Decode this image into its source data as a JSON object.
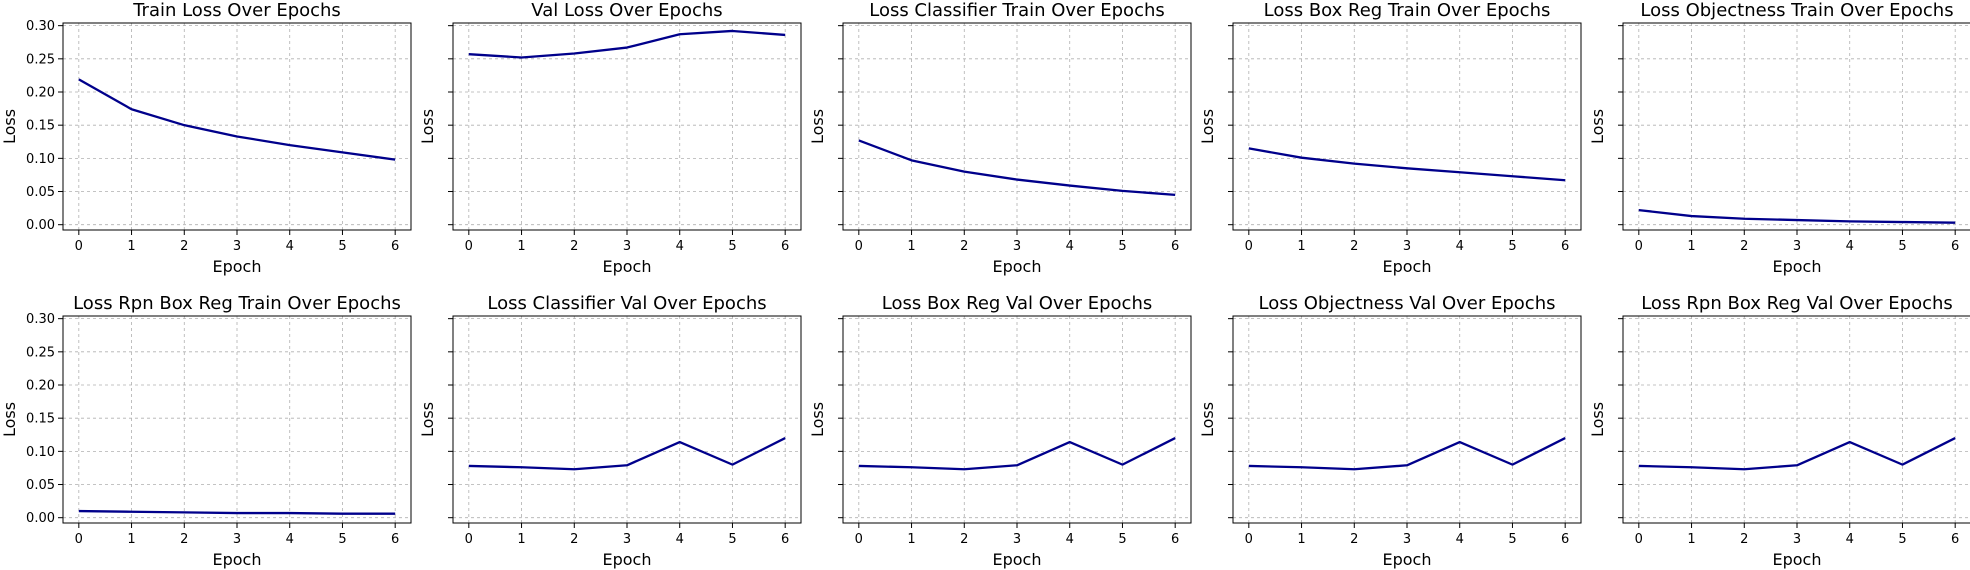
{
  "line_color": "#00008b",
  "grid_color": "#b0b0b0",
  "chart_data": [
    {
      "type": "line",
      "title": "Train Loss Over Epochs",
      "xlabel": "Epoch",
      "ylabel": "Loss",
      "x": [
        0,
        1,
        2,
        3,
        4,
        5,
        6
      ],
      "values": [
        0.219,
        0.174,
        0.15,
        0.133,
        0.12,
        0.109,
        0.098
      ],
      "xlim": [
        -0.3,
        6.3
      ],
      "ylim": [
        -0.008,
        0.304
      ],
      "yticks": [
        0,
        0.05,
        0.1,
        0.15,
        0.2,
        0.25,
        0.3
      ],
      "yticklabels": [
        "0.00",
        "0.05",
        "0.10",
        "0.15",
        "0.20",
        "0.25",
        "0.30"
      ],
      "grid": true
    },
    {
      "type": "line",
      "title": "Val Loss Over Epochs",
      "xlabel": "Epoch",
      "ylabel": "Loss",
      "x": [
        0,
        1,
        2,
        3,
        4,
        5,
        6
      ],
      "values": [
        0.257,
        0.252,
        0.258,
        0.267,
        0.287,
        0.292,
        0.286
      ],
      "xlim": [
        -0.3,
        6.3
      ],
      "ylim": [
        -0.008,
        0.304
      ],
      "yticks": [
        0,
        0.05,
        0.1,
        0.15,
        0.2,
        0.25,
        0.3
      ],
      "grid": true
    },
    {
      "type": "line",
      "title": "Loss Classifier Train Over Epochs",
      "xlabel": "Epoch",
      "ylabel": "Loss",
      "x": [
        0,
        1,
        2,
        3,
        4,
        5,
        6
      ],
      "values": [
        0.127,
        0.097,
        0.08,
        0.068,
        0.059,
        0.051,
        0.045
      ],
      "xlim": [
        -0.3,
        6.3
      ],
      "ylim": [
        -0.008,
        0.304
      ],
      "yticks": [
        0,
        0.05,
        0.1,
        0.15,
        0.2,
        0.25,
        0.3
      ],
      "grid": true
    },
    {
      "type": "line",
      "title": "Loss Box Reg Train Over Epochs",
      "xlabel": "Epoch",
      "ylabel": "Loss",
      "x": [
        0,
        1,
        2,
        3,
        4,
        5,
        6
      ],
      "values": [
        0.115,
        0.101,
        0.092,
        0.085,
        0.079,
        0.073,
        0.067
      ],
      "xlim": [
        -0.3,
        6.3
      ],
      "ylim": [
        -0.008,
        0.304
      ],
      "yticks": [
        0,
        0.05,
        0.1,
        0.15,
        0.2,
        0.25,
        0.3
      ],
      "grid": true
    },
    {
      "type": "line",
      "title": "Loss Objectness Train Over Epochs",
      "xlabel": "Epoch",
      "ylabel": "Loss",
      "x": [
        0,
        1,
        2,
        3,
        4,
        5,
        6
      ],
      "values": [
        0.022,
        0.013,
        0.009,
        0.007,
        0.005,
        0.004,
        0.003
      ],
      "xlim": [
        -0.3,
        6.3
      ],
      "ylim": [
        -0.008,
        0.304
      ],
      "yticks": [
        0,
        0.05,
        0.1,
        0.15,
        0.2,
        0.25,
        0.3
      ],
      "grid": true
    },
    {
      "type": "line",
      "title": "Loss Rpn Box Reg Train Over Epochs",
      "xlabel": "Epoch",
      "ylabel": "Loss",
      "x": [
        0,
        1,
        2,
        3,
        4,
        5,
        6
      ],
      "values": [
        0.01,
        0.009,
        0.008,
        0.007,
        0.007,
        0.006,
        0.006
      ],
      "xlim": [
        -0.3,
        6.3
      ],
      "ylim": [
        -0.008,
        0.304
      ],
      "yticks": [
        0,
        0.05,
        0.1,
        0.15,
        0.2,
        0.25,
        0.3
      ],
      "yticklabels": [
        "0.00",
        "0.05",
        "0.10",
        "0.15",
        "0.20",
        "0.25",
        "0.30"
      ],
      "grid": true
    },
    {
      "type": "line",
      "title": "Loss Classifier Val Over Epochs",
      "xlabel": "Epoch",
      "ylabel": "Loss",
      "x": [
        0,
        1,
        2,
        3,
        4,
        5,
        6
      ],
      "values": [
        0.078,
        0.076,
        0.073,
        0.079,
        0.114,
        0.08,
        0.12
      ],
      "xlim": [
        -0.3,
        6.3
      ],
      "ylim": [
        -0.008,
        0.304
      ],
      "yticks": [
        0,
        0.05,
        0.1,
        0.15,
        0.2,
        0.25,
        0.3
      ],
      "grid": true
    },
    {
      "type": "line",
      "title": "Loss Box Reg Val Over Epochs",
      "xlabel": "Epoch",
      "ylabel": "Loss",
      "x": [
        0,
        1,
        2,
        3,
        4,
        5,
        6
      ],
      "values": [
        0.078,
        0.076,
        0.073,
        0.079,
        0.114,
        0.08,
        0.12
      ],
      "xlim": [
        -0.3,
        6.3
      ],
      "ylim": [
        -0.008,
        0.304
      ],
      "yticks": [
        0,
        0.05,
        0.1,
        0.15,
        0.2,
        0.25,
        0.3
      ],
      "grid": true
    },
    {
      "type": "line",
      "title": "Loss Objectness Val Over Epochs",
      "xlabel": "Epoch",
      "ylabel": "Loss",
      "x": [
        0,
        1,
        2,
        3,
        4,
        5,
        6
      ],
      "values": [
        0.078,
        0.076,
        0.073,
        0.079,
        0.114,
        0.08,
        0.12
      ],
      "xlim": [
        -0.3,
        6.3
      ],
      "ylim": [
        -0.008,
        0.304
      ],
      "yticks": [
        0,
        0.05,
        0.1,
        0.15,
        0.2,
        0.25,
        0.3
      ],
      "grid": true
    },
    {
      "type": "line",
      "title": "Loss Rpn Box Reg Val Over Epochs",
      "xlabel": "Epoch",
      "ylabel": "Loss",
      "x": [
        0,
        1,
        2,
        3,
        4,
        5,
        6
      ],
      "values": [
        0.078,
        0.076,
        0.073,
        0.079,
        0.114,
        0.08,
        0.12
      ],
      "xlim": [
        -0.3,
        6.3
      ],
      "ylim": [
        -0.008,
        0.304
      ],
      "yticks": [
        0,
        0.05,
        0.1,
        0.15,
        0.2,
        0.25,
        0.3
      ],
      "grid": true
    }
  ]
}
